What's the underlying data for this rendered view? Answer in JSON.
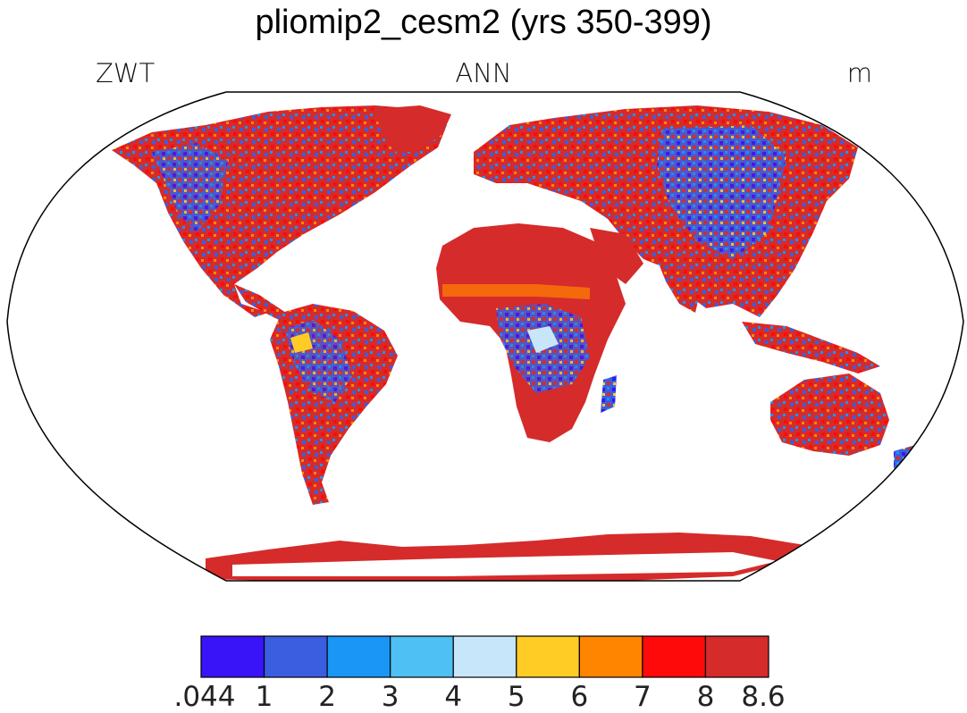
{
  "title": "pliomip2_cesm2 (yrs 350-399)",
  "left_label": "ZWT",
  "center_label": "ANN",
  "right_label": "m",
  "colorbar": {
    "colors": [
      "#3a14f8",
      "#3b5ee0",
      "#1a96f7",
      "#4ec0f3",
      "#c8e6fa",
      "#ffcc25",
      "#ff8500",
      "#ff0a0a",
      "#d52b2b"
    ],
    "tick_labels": [
      ".044",
      "1",
      "2",
      "3",
      "4",
      "5",
      "6",
      "7",
      "8",
      "8.6"
    ]
  },
  "chart_data": {
    "type": "heatmap",
    "variable": "ZWT",
    "season": "ANN",
    "units": "m",
    "projection": "Robinson",
    "levels": [
      0.044,
      1,
      2,
      3,
      4,
      5,
      6,
      7,
      8,
      8.6
    ]
  }
}
